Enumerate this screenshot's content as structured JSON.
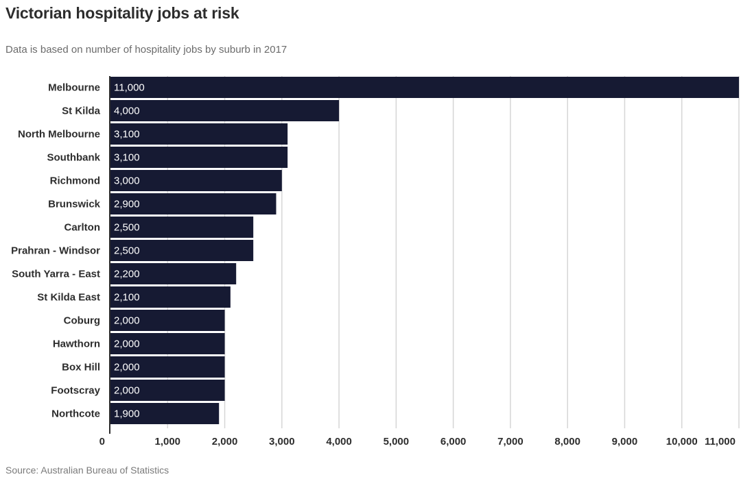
{
  "chart_data": {
    "type": "bar",
    "orientation": "horizontal",
    "title": "Victorian hospitality jobs at risk",
    "subtitle": "Data is based on number of hospitality jobs by suburb in 2017",
    "source": "Source: Australian Bureau of Statistics",
    "categories": [
      "Melbourne",
      "St Kilda",
      "North Melbourne",
      "Southbank",
      "Richmond",
      "Brunswick",
      "Carlton",
      "Prahran - Windsor",
      "South Yarra - East",
      "St Kilda East",
      "Coburg",
      "Hawthorn",
      "Box Hill",
      "Footscray",
      "Northcote"
    ],
    "values": [
      11000,
      4000,
      3100,
      3100,
      3000,
      2900,
      2500,
      2500,
      2200,
      2100,
      2000,
      2000,
      2000,
      2000,
      1900
    ],
    "value_labels": [
      "11,000",
      "4,000",
      "3,100",
      "3,100",
      "3,000",
      "2,900",
      "2,500",
      "2,500",
      "2,200",
      "2,100",
      "2,000",
      "2,000",
      "2,000",
      "2,000",
      "1,900"
    ],
    "xlim": [
      0,
      11000
    ],
    "xticks": [
      0,
      1000,
      2000,
      3000,
      4000,
      5000,
      6000,
      7000,
      8000,
      9000,
      10000,
      11000
    ],
    "xtick_labels": [
      "0",
      "1,000",
      "2,000",
      "3,000",
      "4,000",
      "5,000",
      "6,000",
      "7,000",
      "8,000",
      "9,000",
      "10,000",
      "11,000"
    ],
    "xlabel": "",
    "ylabel": "",
    "grid": "vertical",
    "bar_color": "#161a33",
    "grid_color": "#d6d6d6"
  }
}
